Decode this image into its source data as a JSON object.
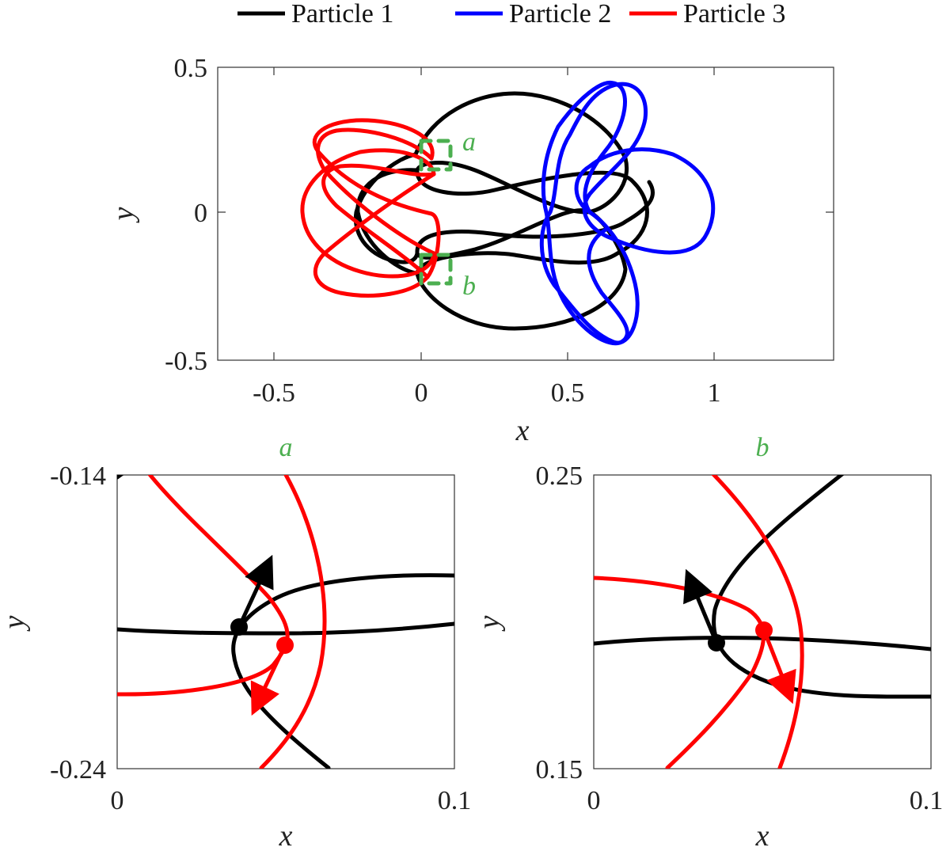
{
  "colors": {
    "particle1": "#000000",
    "particle2": "#0000ff",
    "particle3": "#ff0000",
    "annotation": "#4caf50"
  },
  "legend": {
    "placement": "top-center",
    "entries": [
      "Particle 1",
      "Particle 2",
      "Particle 3"
    ]
  },
  "chart_data": [
    {
      "type": "line",
      "panel": "main",
      "xlabel": "x",
      "ylabel": "y",
      "xlim": [
        -0.7,
        1.4
      ],
      "ylim": [
        -0.5,
        0.5
      ],
      "xticks": [
        "-0.5",
        "0",
        "0.5",
        "1"
      ],
      "yticks": [
        "0.5",
        "0",
        "-0.5"
      ],
      "annotations": [
        {
          "label": "a",
          "x": 0.1,
          "y": 0.22
        },
        {
          "label": "b",
          "x": 0.1,
          "y": -0.25
        }
      ],
      "series": [
        {
          "name": "Particle 1",
          "description": "figure-eight loop between x 0 and 0.8"
        },
        {
          "name": "Particle 2",
          "description": "multi-lobed loop centred near x 0.65"
        },
        {
          "name": "Particle 3",
          "description": "rosette loop centred near x -0.15"
        }
      ]
    },
    {
      "type": "line",
      "panel": "zoom-a",
      "title": "a",
      "xlabel": "x",
      "ylabel": "y",
      "xlim": [
        0,
        0.1
      ],
      "ylim": [
        -0.24,
        -0.14
      ],
      "xticks": [
        "0",
        "0.1"
      ],
      "yticks": [
        "-0.14",
        "-0.24"
      ],
      "points": [
        {
          "name": "Particle 1",
          "x": 0.036,
          "y": -0.193
        },
        {
          "name": "Particle 3",
          "x": 0.05,
          "y": -0.198
        }
      ]
    },
    {
      "type": "line",
      "panel": "zoom-b",
      "title": "b",
      "xlabel": "x",
      "ylabel": "y",
      "xlim": [
        0,
        0.1
      ],
      "ylim": [
        0.15,
        0.25
      ],
      "xticks": [
        "0",
        "0.1"
      ],
      "yticks": [
        "0.25",
        "0.15"
      ],
      "points": [
        {
          "name": "Particle 1",
          "x": 0.036,
          "y": 0.197
        },
        {
          "name": "Particle 3",
          "x": 0.05,
          "y": 0.2
        }
      ]
    }
  ]
}
